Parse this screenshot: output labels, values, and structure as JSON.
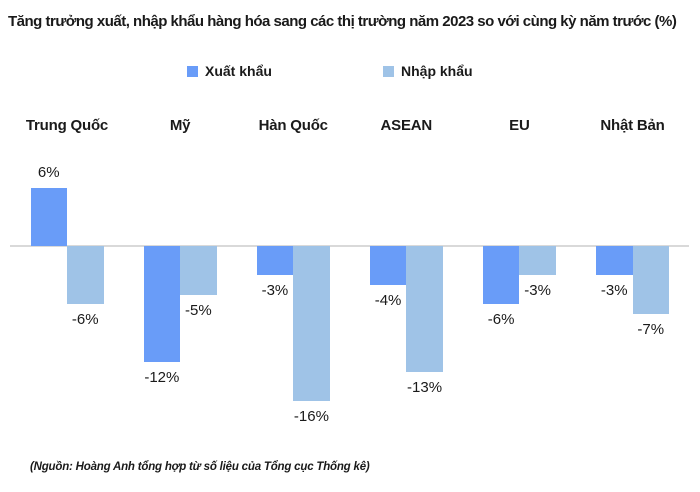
{
  "title": "Tăng trưởng xuất, nhập khẩu hàng hóa sang các thị trường năm 2023 so với cùng kỳ năm trước (%)",
  "source_note": "(Nguồn: Hoàng Anh tổng hợp từ số liệu của Tổng cục Thống kê)",
  "colors": {
    "export_blue": "#699CF8",
    "import_blue": "#9FC3E7",
    "zero_line": "#D9D9D9",
    "text": "#1A1A1A"
  },
  "legend": {
    "items": [
      {
        "label": "Xuất khẩu",
        "color": "#699CF8"
      },
      {
        "label": "Nhập khẩu",
        "color": "#9FC3E7"
      }
    ]
  },
  "chart_data": {
    "type": "bar",
    "title": "Tăng trưởng xuất, nhập khẩu hàng hóa sang các thị trường năm 2023 so với cùng kỳ năm trước (%)",
    "unit": "%",
    "categories": [
      "Trung Quốc",
      "Mỹ",
      "Hàn Quốc",
      "ASEAN",
      "EU",
      "Nhật Bản"
    ],
    "series": [
      {
        "name": "Xuất khẩu",
        "color": "#699CF8",
        "values": [
          6,
          -12,
          -3,
          -4,
          -6,
          -3
        ],
        "labels": [
          "6%",
          "-12%",
          "-3%",
          "-4%",
          "-6%",
          "-3%"
        ]
      },
      {
        "name": "Nhập khẩu",
        "color": "#9FC3E7",
        "values": [
          -6,
          -5,
          -16,
          -13,
          -3,
          -7
        ],
        "labels": [
          "-6%",
          "-5%",
          "-16%",
          "-13%",
          "-3%",
          "-7%"
        ]
      }
    ],
    "xlabel": "",
    "ylabel": "",
    "ylim": [
      -16,
      6
    ],
    "grid": false,
    "data_labels": true,
    "legend_position": "top"
  }
}
